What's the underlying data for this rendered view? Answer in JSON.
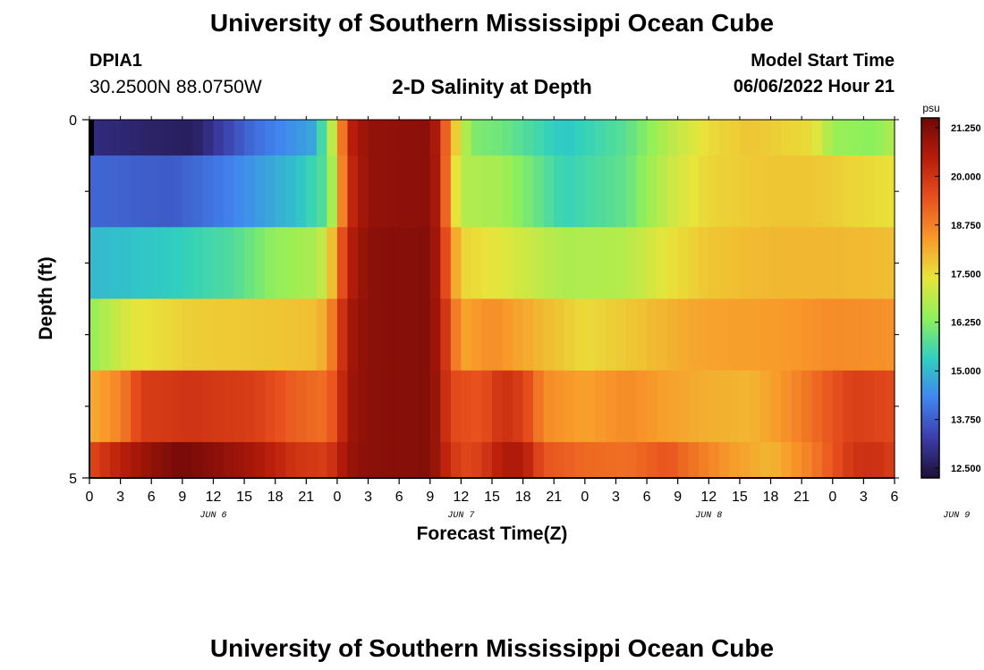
{
  "header": {
    "title": "University of Southern Mississippi Ocean Cube",
    "station": "DPIA1",
    "coords": "30.2500N  88.0750W",
    "subtitle": "2-D Salinity at Depth",
    "model_start_label": "Model Start Time",
    "model_start_value": "06/06/2022 Hour 21"
  },
  "footer": {
    "title": "University of Southern Mississippi Ocean Cube"
  },
  "chart_data": {
    "type": "heatmap",
    "title": "2-D Salinity at Depth",
    "xlabel": "Forecast Time(Z)",
    "ylabel": "Depth (ft)",
    "x_ticks": [
      "0",
      "3",
      "6",
      "9",
      "12",
      "15",
      "18",
      "21",
      "0",
      "3",
      "6",
      "9",
      "12",
      "15",
      "18",
      "21",
      "0",
      "3",
      "6",
      "9",
      "12",
      "15",
      "18",
      "21",
      "0",
      "3",
      "6"
    ],
    "date_labels": [
      {
        "label": "JUN 6",
        "hour": 12
      },
      {
        "label": "JUN 7",
        "hour": 36
      },
      {
        "label": "JUN 8",
        "hour": 60
      },
      {
        "label": "JUN 9",
        "hour": 84
      }
    ],
    "x_range_hours": [
      0,
      78
    ],
    "y_ticks": [
      "0",
      "5"
    ],
    "y_range": [
      0,
      5
    ],
    "colorbar": {
      "unit": "psu",
      "min": 12.25,
      "max": 21.5,
      "ticks": [
        "21.250",
        "20.000",
        "18.750",
        "17.500",
        "16.250",
        "15.000",
        "13.750",
        "12.500"
      ],
      "stops": [
        "#1e0e36",
        "#3c3da8",
        "#4184f0",
        "#2fd0c0",
        "#8ff05a",
        "#e8e43a",
        "#f8982a",
        "#e8501e",
        "#b81d0a",
        "#6e0808"
      ]
    },
    "depth_layers": [
      {
        "depth_top": 0.0,
        "depth_bottom": 0.5,
        "keys": [
          [
            0,
            12.9
          ],
          [
            6,
            12.7
          ],
          [
            10,
            12.6
          ],
          [
            16,
            14.0
          ],
          [
            22,
            14.8
          ],
          [
            23,
            16.3
          ],
          [
            24,
            17.5
          ],
          [
            25,
            20.3
          ],
          [
            27,
            21.0
          ],
          [
            33,
            21.1
          ],
          [
            34,
            20.2
          ],
          [
            35,
            18.2
          ],
          [
            36,
            17.2
          ],
          [
            37,
            16.2
          ],
          [
            40,
            16.0
          ],
          [
            46,
            15.2
          ],
          [
            52,
            15.8
          ],
          [
            56,
            16.8
          ],
          [
            60,
            17.5
          ],
          [
            64,
            17.8
          ],
          [
            70,
            17.5
          ],
          [
            72,
            16.5
          ],
          [
            76,
            16.3
          ],
          [
            78,
            16.8
          ]
        ]
      },
      {
        "depth_top": 0.5,
        "depth_bottom": 1.5,
        "keys": [
          [
            0,
            13.9
          ],
          [
            8,
            13.7
          ],
          [
            14,
            14.3
          ],
          [
            20,
            15.1
          ],
          [
            23,
            15.8
          ],
          [
            24,
            17.4
          ],
          [
            25,
            20.1
          ],
          [
            27,
            21.0
          ],
          [
            33,
            21.1
          ],
          [
            34,
            20.3
          ],
          [
            35,
            18.0
          ],
          [
            36,
            16.8
          ],
          [
            40,
            16.6
          ],
          [
            46,
            15.4
          ],
          [
            52,
            15.9
          ],
          [
            56,
            17.0
          ],
          [
            60,
            17.6
          ],
          [
            66,
            17.8
          ],
          [
            70,
            17.8
          ],
          [
            74,
            17.6
          ],
          [
            78,
            17.4
          ]
        ]
      },
      {
        "depth_top": 1.5,
        "depth_bottom": 2.5,
        "keys": [
          [
            0,
            15.0
          ],
          [
            8,
            15.3
          ],
          [
            14,
            15.7
          ],
          [
            18,
            16.4
          ],
          [
            22,
            16.7
          ],
          [
            23,
            17.2
          ],
          [
            24,
            18.6
          ],
          [
            25,
            20.4
          ],
          [
            27,
            21.1
          ],
          [
            33,
            21.2
          ],
          [
            34,
            20.4
          ],
          [
            35,
            18.7
          ],
          [
            36,
            17.6
          ],
          [
            40,
            17.3
          ],
          [
            46,
            16.7
          ],
          [
            52,
            16.8
          ],
          [
            56,
            17.4
          ],
          [
            60,
            17.8
          ],
          [
            66,
            18.0
          ],
          [
            72,
            18.0
          ],
          [
            78,
            17.9
          ]
        ]
      },
      {
        "depth_top": 2.5,
        "depth_bottom": 3.5,
        "keys": [
          [
            0,
            16.4
          ],
          [
            4,
            17.3
          ],
          [
            10,
            17.7
          ],
          [
            18,
            17.8
          ],
          [
            22,
            17.9
          ],
          [
            23,
            18.3
          ],
          [
            24,
            19.4
          ],
          [
            25,
            20.7
          ],
          [
            27,
            21.1
          ],
          [
            33,
            21.2
          ],
          [
            34,
            20.5
          ],
          [
            35,
            19.4
          ],
          [
            36,
            18.2
          ],
          [
            39,
            18.6
          ],
          [
            42,
            18.2
          ],
          [
            48,
            17.5
          ],
          [
            54,
            17.9
          ],
          [
            58,
            18.2
          ],
          [
            62,
            18.3
          ],
          [
            68,
            18.4
          ],
          [
            72,
            18.6
          ],
          [
            78,
            18.5
          ]
        ]
      },
      {
        "depth_top": 3.5,
        "depth_bottom": 4.5,
        "keys": [
          [
            0,
            18.1
          ],
          [
            3,
            18.7
          ],
          [
            5,
            19.8
          ],
          [
            10,
            20.0
          ],
          [
            16,
            19.8
          ],
          [
            20,
            19.2
          ],
          [
            23,
            19.0
          ],
          [
            24,
            19.7
          ],
          [
            25,
            20.8
          ],
          [
            27,
            21.1
          ],
          [
            33,
            21.2
          ],
          [
            34,
            20.6
          ],
          [
            35,
            19.6
          ],
          [
            38,
            19.4
          ],
          [
            40,
            20.1
          ],
          [
            42,
            19.8
          ],
          [
            44,
            18.6
          ],
          [
            48,
            18.3
          ],
          [
            52,
            18.6
          ],
          [
            56,
            18.3
          ],
          [
            60,
            18.1
          ],
          [
            64,
            18.0
          ],
          [
            68,
            18.6
          ],
          [
            72,
            19.4
          ],
          [
            74,
            19.8
          ],
          [
            78,
            19.6
          ]
        ]
      },
      {
        "depth_top": 4.5,
        "depth_bottom": 5.0,
        "keys": [
          [
            0,
            19.6
          ],
          [
            3,
            20.4
          ],
          [
            6,
            21.0
          ],
          [
            9,
            21.4
          ],
          [
            12,
            21.1
          ],
          [
            16,
            20.7
          ],
          [
            20,
            20.0
          ],
          [
            23,
            19.8
          ],
          [
            24,
            20.3
          ],
          [
            25,
            20.9
          ],
          [
            27,
            21.1
          ],
          [
            33,
            21.2
          ],
          [
            34,
            20.6
          ],
          [
            36,
            19.6
          ],
          [
            38,
            19.8
          ],
          [
            40,
            20.6
          ],
          [
            42,
            20.6
          ],
          [
            44,
            19.4
          ],
          [
            48,
            19.1
          ],
          [
            52,
            19.0
          ],
          [
            56,
            19.4
          ],
          [
            58,
            19.0
          ],
          [
            62,
            18.4
          ],
          [
            66,
            18.0
          ],
          [
            70,
            18.8
          ],
          [
            74,
            20.0
          ],
          [
            76,
            20.1
          ],
          [
            78,
            19.8
          ]
        ]
      }
    ],
    "black_marker": {
      "hour_start": 0,
      "hour_end": 0.4,
      "depth_top": 0,
      "depth_bottom": 0.5,
      "color": "#000000"
    }
  }
}
